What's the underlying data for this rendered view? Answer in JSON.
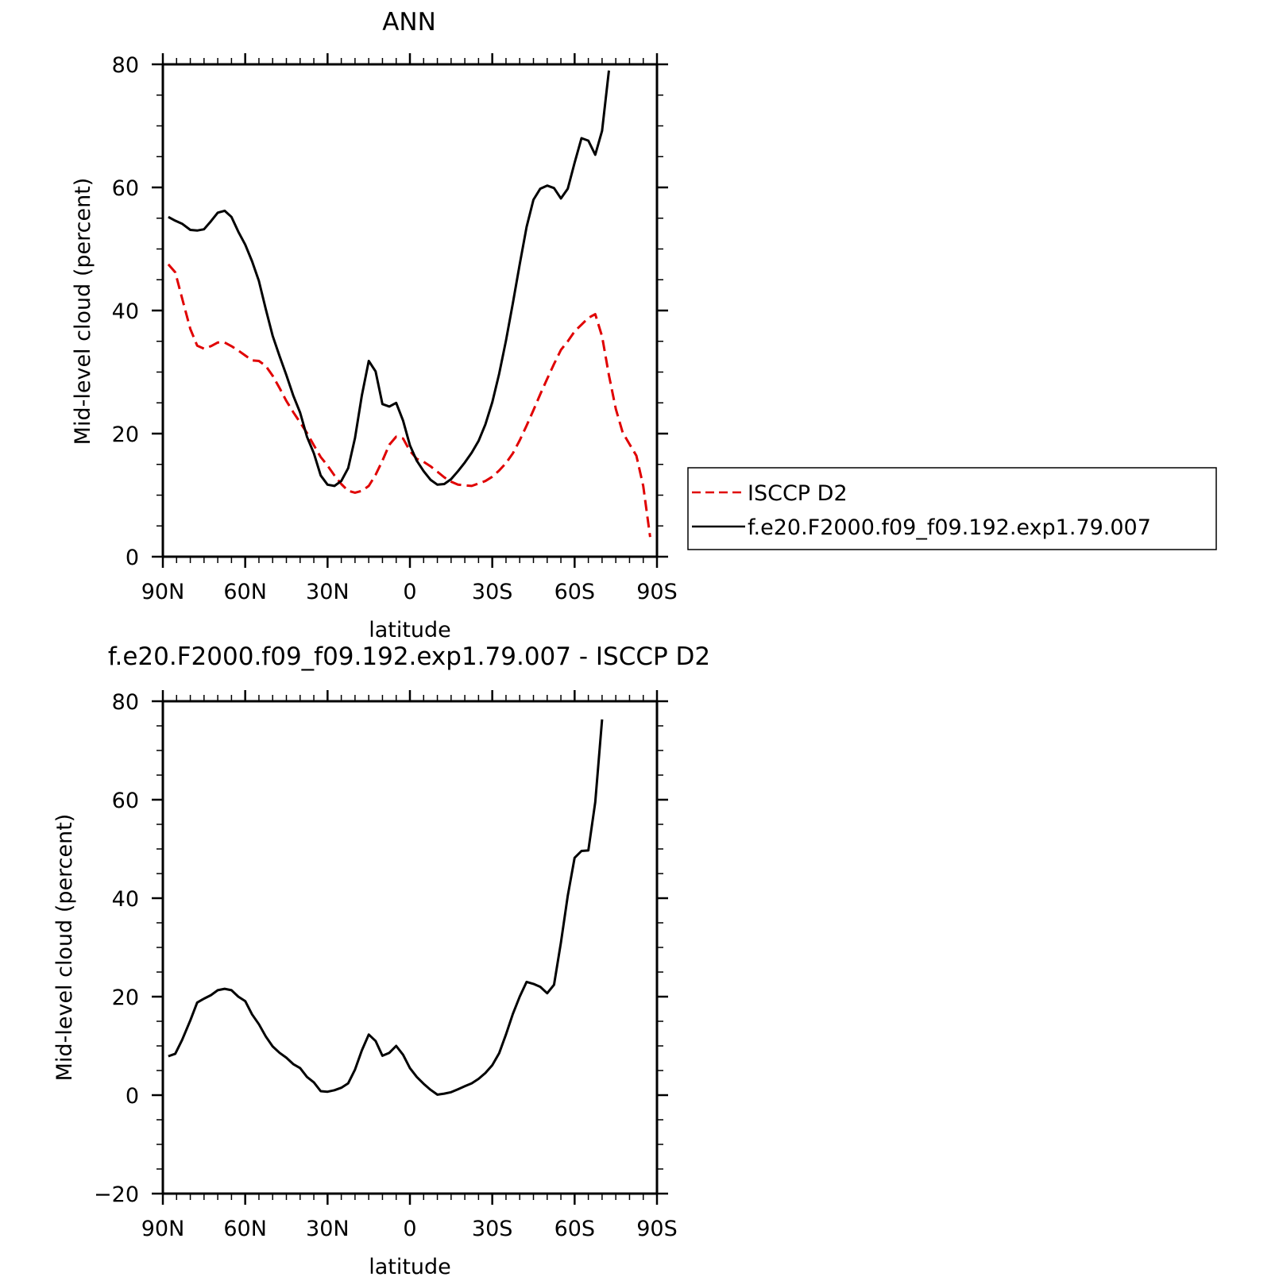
{
  "chart_data": [
    {
      "type": "line",
      "title": "ANN",
      "xlabel": "latitude",
      "ylabel": "Mid-level cloud (percent)",
      "xlim": [
        90,
        -90
      ],
      "ylim": [
        0,
        80
      ],
      "x_ticks": [
        {
          "value": 90,
          "label": "90N"
        },
        {
          "value": 60,
          "label": "60N"
        },
        {
          "value": 30,
          "label": "30N"
        },
        {
          "value": 0,
          "label": "0"
        },
        {
          "value": -30,
          "label": "30S"
        },
        {
          "value": -60,
          "label": "60S"
        },
        {
          "value": -90,
          "label": "90S"
        }
      ],
      "y_ticks": [
        {
          "value": 0,
          "label": "0"
        },
        {
          "value": 20,
          "label": "20"
        },
        {
          "value": 40,
          "label": "40"
        },
        {
          "value": 60,
          "label": "60"
        },
        {
          "value": 80,
          "label": "80"
        }
      ],
      "grid": false,
      "legend_position": "right",
      "series": [
        {
          "name": "ISCCP D2",
          "color": "#e00000",
          "style": "dashed",
          "points": [
            [
              88,
              47.5
            ],
            [
              85.5,
              46.2
            ],
            [
              83,
              42
            ],
            [
              80,
              37
            ],
            [
              77.5,
              34.3
            ],
            [
              75,
              33.8
            ],
            [
              72.5,
              34.2
            ],
            [
              70,
              34.8
            ],
            [
              67.5,
              34.8
            ],
            [
              65,
              34.2
            ],
            [
              62.5,
              33.5
            ],
            [
              60,
              32.7
            ],
            [
              57.5,
              31.9
            ],
            [
              55,
              31.8
            ],
            [
              52.5,
              31
            ],
            [
              50,
              29.4
            ],
            [
              47.5,
              27.4
            ],
            [
              45,
              25.3
            ],
            [
              42.5,
              23.5
            ],
            [
              40,
              21.8
            ],
            [
              37.5,
              20.1
            ],
            [
              35,
              18.1
            ],
            [
              32.5,
              16.2
            ],
            [
              30,
              14.8
            ],
            [
              27.5,
              13.2
            ],
            [
              25,
              11.8
            ],
            [
              22.5,
              10.7
            ],
            [
              20,
              10.4
            ],
            [
              17.5,
              10.7
            ],
            [
              15,
              11.5
            ],
            [
              12.5,
              13.3
            ],
            [
              10,
              15.6
            ],
            [
              7.5,
              18.2
            ],
            [
              5,
              19.5
            ],
            [
              2.5,
              19.2
            ],
            [
              0,
              17.2
            ],
            [
              -2.5,
              15.9
            ],
            [
              -5,
              15.4
            ],
            [
              -7.5,
              14.7
            ],
            [
              -10,
              13.8
            ],
            [
              -12.5,
              12.9
            ],
            [
              -15,
              12.2
            ],
            [
              -17.5,
              11.7
            ],
            [
              -20,
              11.6
            ],
            [
              -22.5,
              11.5
            ],
            [
              -25,
              11.9
            ],
            [
              -27.5,
              12.3
            ],
            [
              -30,
              13
            ],
            [
              -32.5,
              14
            ],
            [
              -35,
              15.2
            ],
            [
              -37.5,
              16.8
            ],
            [
              -40,
              18.9
            ],
            [
              -42.5,
              21.3
            ],
            [
              -45,
              23.8
            ],
            [
              -47.5,
              26.4
            ],
            [
              -50,
              28.9
            ],
            [
              -52.5,
              31.3
            ],
            [
              -55,
              33.6
            ],
            [
              -57.5,
              35
            ],
            [
              -60,
              36.6
            ],
            [
              -62.5,
              37.7
            ],
            [
              -65,
              38.8
            ],
            [
              -67.5,
              39.4
            ],
            [
              -70,
              35.8
            ],
            [
              -72.5,
              29.5
            ],
            [
              -75,
              24
            ],
            [
              -77.5,
              20.2
            ],
            [
              -80,
              18.3
            ],
            [
              -82.5,
              16.4
            ],
            [
              -85,
              11.5
            ],
            [
              -87.5,
              3.2
            ]
          ]
        },
        {
          "name": "f.e20.F2000.f09_f09.192.exp1.79.007",
          "color": "#000000",
          "style": "solid",
          "points": [
            [
              88,
              55.2
            ],
            [
              85.5,
              54.6
            ],
            [
              83,
              54.1
            ],
            [
              80,
              53.1
            ],
            [
              77.5,
              53
            ],
            [
              75,
              53.2
            ],
            [
              72.5,
              54.5
            ],
            [
              70,
              55.9
            ],
            [
              67.5,
              56.2
            ],
            [
              65,
              55.2
            ],
            [
              62.5,
              52.8
            ],
            [
              60,
              50.7
            ],
            [
              57.5,
              48
            ],
            [
              55,
              44.8
            ],
            [
              52.5,
              40.2
            ],
            [
              50,
              35.9
            ],
            [
              47.5,
              32.6
            ],
            [
              45,
              29.5
            ],
            [
              42.5,
              26.2
            ],
            [
              40,
              23.4
            ],
            [
              37.5,
              19.5
            ],
            [
              35,
              16.8
            ],
            [
              32.5,
              13.2
            ],
            [
              30,
              11.7
            ],
            [
              27.5,
              11.5
            ],
            [
              25,
              12.3
            ],
            [
              22.5,
              14.4
            ],
            [
              20,
              19.3
            ],
            [
              17.5,
              26.2
            ],
            [
              15,
              31.8
            ],
            [
              12.5,
              30.1
            ],
            [
              10,
              24.8
            ],
            [
              7.5,
              24.4
            ],
            [
              5,
              25
            ],
            [
              2.5,
              22.1
            ],
            [
              0,
              18.1
            ],
            [
              -2.5,
              15.6
            ],
            [
              -5,
              13.9
            ],
            [
              -7.5,
              12.5
            ],
            [
              -10,
              11.7
            ],
            [
              -12.5,
              11.8
            ],
            [
              -15,
              12.6
            ],
            [
              -17.5,
              13.9
            ],
            [
              -20,
              15.3
            ],
            [
              -22.5,
              16.9
            ],
            [
              -25,
              18.8
            ],
            [
              -27.5,
              21.5
            ],
            [
              -30,
              25.1
            ],
            [
              -32.5,
              29.7
            ],
            [
              -35,
              35.1
            ],
            [
              -37.5,
              41.2
            ],
            [
              -40,
              47.5
            ],
            [
              -42.5,
              53.6
            ],
            [
              -45,
              58
            ],
            [
              -47.5,
              59.8
            ],
            [
              -50,
              60.3
            ],
            [
              -52.5,
              59.9
            ],
            [
              -55,
              58.2
            ],
            [
              -57.5,
              59.8
            ],
            [
              -60,
              64
            ],
            [
              -62.5,
              68
            ],
            [
              -65,
              67.6
            ],
            [
              -67.5,
              65.3
            ],
            [
              -70,
              69.2
            ],
            [
              -72.5,
              79
            ]
          ]
        }
      ]
    },
    {
      "type": "line",
      "title": "f.e20.F2000.f09_f09.192.exp1.79.007 - ISCCP D2",
      "xlabel": "latitude",
      "ylabel": "Mid-level cloud (percent)",
      "xlim": [
        90,
        -90
      ],
      "ylim": [
        -20,
        80
      ],
      "x_ticks": [
        {
          "value": 90,
          "label": "90N"
        },
        {
          "value": 60,
          "label": "60N"
        },
        {
          "value": 30,
          "label": "30N"
        },
        {
          "value": 0,
          "label": "0"
        },
        {
          "value": -30,
          "label": "30S"
        },
        {
          "value": -60,
          "label": "60S"
        },
        {
          "value": -90,
          "label": "90S"
        }
      ],
      "y_ticks": [
        {
          "value": -20,
          "label": "-20"
        },
        {
          "value": 0,
          "label": "0"
        },
        {
          "value": 20,
          "label": "20"
        },
        {
          "value": 40,
          "label": "40"
        },
        {
          "value": 60,
          "label": "60"
        },
        {
          "value": 80,
          "label": "80"
        }
      ],
      "grid": false,
      "series": [
        {
          "color": "#000000",
          "style": "solid",
          "points": [
            [
              88,
              7.9
            ],
            [
              85.5,
              8.4
            ],
            [
              83,
              11.2
            ],
            [
              80,
              15.2
            ],
            [
              77.5,
              18.8
            ],
            [
              75,
              19.6
            ],
            [
              72.5,
              20.3
            ],
            [
              70,
              21.3
            ],
            [
              67.5,
              21.6
            ],
            [
              65,
              21.3
            ],
            [
              62.5,
              20
            ],
            [
              60,
              19.1
            ],
            [
              57.5,
              16.4
            ],
            [
              55,
              14.4
            ],
            [
              52.5,
              11.9
            ],
            [
              50,
              9.9
            ],
            [
              47.5,
              8.6
            ],
            [
              45,
              7.6
            ],
            [
              42.5,
              6.3
            ],
            [
              40,
              5.5
            ],
            [
              37.5,
              3.7
            ],
            [
              35,
              2.6
            ],
            [
              32.5,
              0.8
            ],
            [
              30,
              0.7
            ],
            [
              27.5,
              1
            ],
            [
              25,
              1.5
            ],
            [
              22.5,
              2.4
            ],
            [
              20,
              5.2
            ],
            [
              17.5,
              9.1
            ],
            [
              15,
              12.3
            ],
            [
              12.5,
              11
            ],
            [
              10,
              8
            ],
            [
              7.5,
              8.6
            ],
            [
              5,
              10
            ],
            [
              2.5,
              8.2
            ],
            [
              0,
              5.5
            ],
            [
              -2.5,
              3.7
            ],
            [
              -5,
              2.3
            ],
            [
              -7.5,
              1.1
            ],
            [
              -10,
              0.1
            ],
            [
              -12.5,
              0.3
            ],
            [
              -15,
              0.6
            ],
            [
              -17.5,
              1.2
            ],
            [
              -20,
              1.8
            ],
            [
              -22.5,
              2.4
            ],
            [
              -25,
              3.3
            ],
            [
              -27.5,
              4.5
            ],
            [
              -30,
              6.1
            ],
            [
              -32.5,
              8.5
            ],
            [
              -35,
              12.3
            ],
            [
              -37.5,
              16.5
            ],
            [
              -40,
              20
            ],
            [
              -42.5,
              23
            ],
            [
              -45,
              22.6
            ],
            [
              -47.5,
              22
            ],
            [
              -50,
              20.7
            ],
            [
              -52.5,
              22.4
            ],
            [
              -55,
              31
            ],
            [
              -57.5,
              40.5
            ],
            [
              -60,
              48.2
            ],
            [
              -62.5,
              49.6
            ],
            [
              -65,
              49.7
            ],
            [
              -67.5,
              59.5
            ],
            [
              -70,
              76.3
            ]
          ]
        }
      ]
    }
  ]
}
